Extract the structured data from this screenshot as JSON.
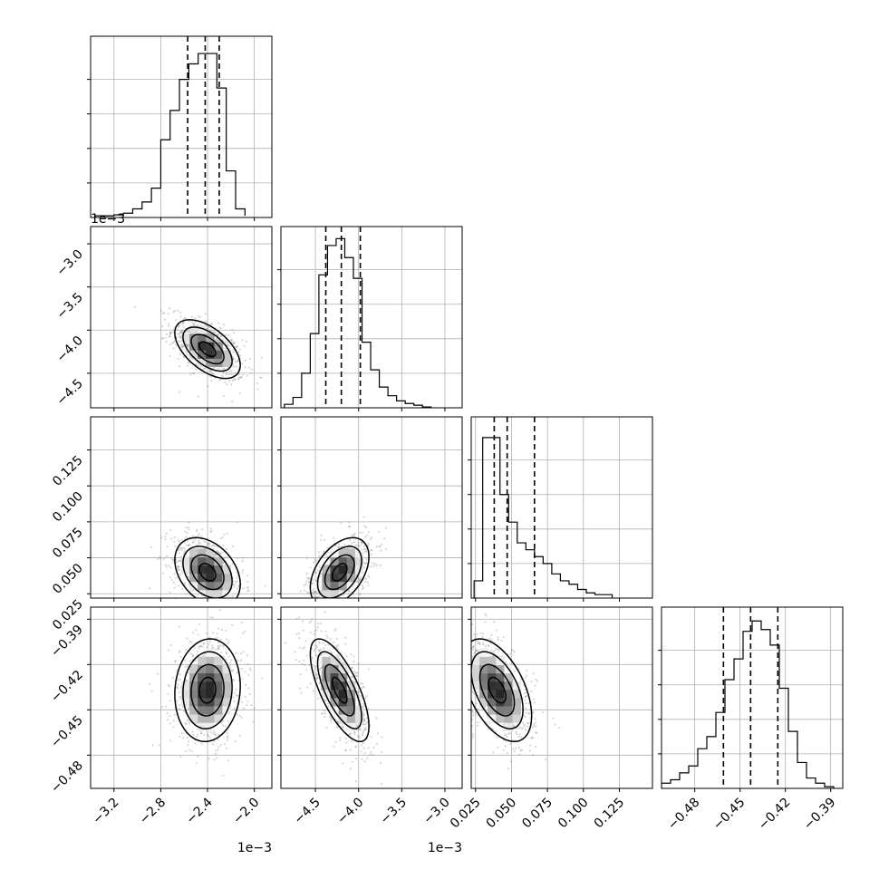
{
  "chart_data": {
    "type": "corner",
    "n_parameters": 4,
    "grid": true,
    "parameters": [
      {
        "id": "p0",
        "range": [
          -3.4,
          -1.85
        ],
        "ticks": [
          -3.2,
          -2.8,
          -2.4,
          -2.0
        ],
        "tick_labels": [
          "−3.2",
          "−2.8",
          "−2.4",
          "−2.0"
        ],
        "offset_text": "1e−3",
        "mode": -2.4,
        "sigma": 0.14,
        "quantiles": [
          -2.57,
          -2.42,
          -2.3
        ]
      },
      {
        "id": "p1",
        "range": [
          -4.9,
          -2.8
        ],
        "ticks": [
          -4.5,
          -4.0,
          -3.5,
          -3.0
        ],
        "tick_labels": [
          "−4.5",
          "−4.0",
          "−3.5",
          "−3.0"
        ],
        "offset_text": "1e−3",
        "mode": -4.22,
        "sigma": 0.17,
        "quantiles": [
          -4.38,
          -4.2,
          -3.98
        ]
      },
      {
        "id": "p2",
        "range": [
          0.022,
          0.148
        ],
        "ticks": [
          0.025,
          0.05,
          0.075,
          0.1,
          0.125
        ],
        "tick_labels": [
          "0.025",
          "0.050",
          "0.075",
          "0.100",
          "0.125"
        ],
        "offset_text": "",
        "mode": 0.04,
        "sigma": 0.012,
        "quantiles": [
          0.038,
          0.047,
          0.066
        ]
      },
      {
        "id": "p3",
        "range": [
          -0.502,
          -0.382
        ],
        "ticks": [
          -0.48,
          -0.45,
          -0.42,
          -0.39
        ],
        "tick_labels": [
          "−0.48",
          "−0.45",
          "−0.42",
          "−0.39"
        ],
        "offset_text": "",
        "mode": -0.437,
        "sigma": 0.017,
        "quantiles": [
          -0.461,
          -0.443,
          -0.425
        ]
      }
    ],
    "histograms": [
      {
        "param": 0,
        "bin_edges": [
          -3.36,
          -3.28,
          -3.2,
          -3.12,
          -3.04,
          -2.96,
          -2.88,
          -2.8,
          -2.72,
          -2.64,
          -2.56,
          -2.48,
          -2.4,
          -2.32,
          -2.24,
          -2.16,
          -2.08
        ],
        "counts": [
          0.01,
          0.01,
          0.015,
          0.025,
          0.05,
          0.09,
          0.17,
          0.45,
          0.62,
          0.8,
          0.89,
          0.95,
          0.95,
          0.75,
          0.27,
          0.05,
          0.01
        ],
        "counts_max": 1.0
      },
      {
        "param": 1,
        "bin_edges": [
          -4.86,
          -4.76,
          -4.66,
          -4.56,
          -4.46,
          -4.36,
          -4.26,
          -4.16,
          -4.06,
          -3.96,
          -3.86,
          -3.76,
          -3.66,
          -3.56,
          -3.46,
          -3.36,
          -3.26,
          -3.16
        ],
        "counts": [
          0.02,
          0.06,
          0.2,
          0.43,
          0.77,
          0.94,
          0.98,
          0.87,
          0.75,
          0.38,
          0.22,
          0.12,
          0.07,
          0.04,
          0.025,
          0.015,
          0.005
        ],
        "counts_max": 1.0
      },
      {
        "param": 2,
        "bin_edges": [
          0.024,
          0.03,
          0.036,
          0.042,
          0.048,
          0.054,
          0.06,
          0.066,
          0.072,
          0.078,
          0.084,
          0.09,
          0.096,
          0.102,
          0.108,
          0.114,
          0.12
        ],
        "counts": [
          0.1,
          0.93,
          0.93,
          0.6,
          0.44,
          0.32,
          0.28,
          0.24,
          0.2,
          0.14,
          0.1,
          0.08,
          0.05,
          0.03,
          0.02,
          0.02
        ],
        "counts_max": 1.0
      },
      {
        "param": 3,
        "bin_edges": [
          -0.502,
          -0.496,
          -0.49,
          -0.484,
          -0.478,
          -0.472,
          -0.466,
          -0.46,
          -0.454,
          -0.448,
          -0.442,
          -0.436,
          -0.43,
          -0.424,
          -0.418,
          -0.412,
          -0.406,
          -0.4,
          -0.394,
          -0.388
        ],
        "counts": [
          0.03,
          0.05,
          0.09,
          0.13,
          0.23,
          0.3,
          0.44,
          0.63,
          0.75,
          0.91,
          0.97,
          0.92,
          0.83,
          0.58,
          0.33,
          0.15,
          0.06,
          0.03,
          0.01
        ],
        "counts_max": 1.0
      }
    ],
    "pair_correlations": [
      {
        "x": 0,
        "y": 1,
        "rho": -0.55
      },
      {
        "x": 0,
        "y": 2,
        "rho": -0.35
      },
      {
        "x": 1,
        "y": 2,
        "rho": 0.45
      },
      {
        "x": 0,
        "y": 3,
        "rho": 0.08
      },
      {
        "x": 1,
        "y": 3,
        "rho": -0.7
      },
      {
        "x": 2,
        "y": 3,
        "rho": -0.5
      }
    ],
    "contour_levels_sigma": [
      0.5,
      1.0,
      1.5,
      2.0
    ]
  }
}
